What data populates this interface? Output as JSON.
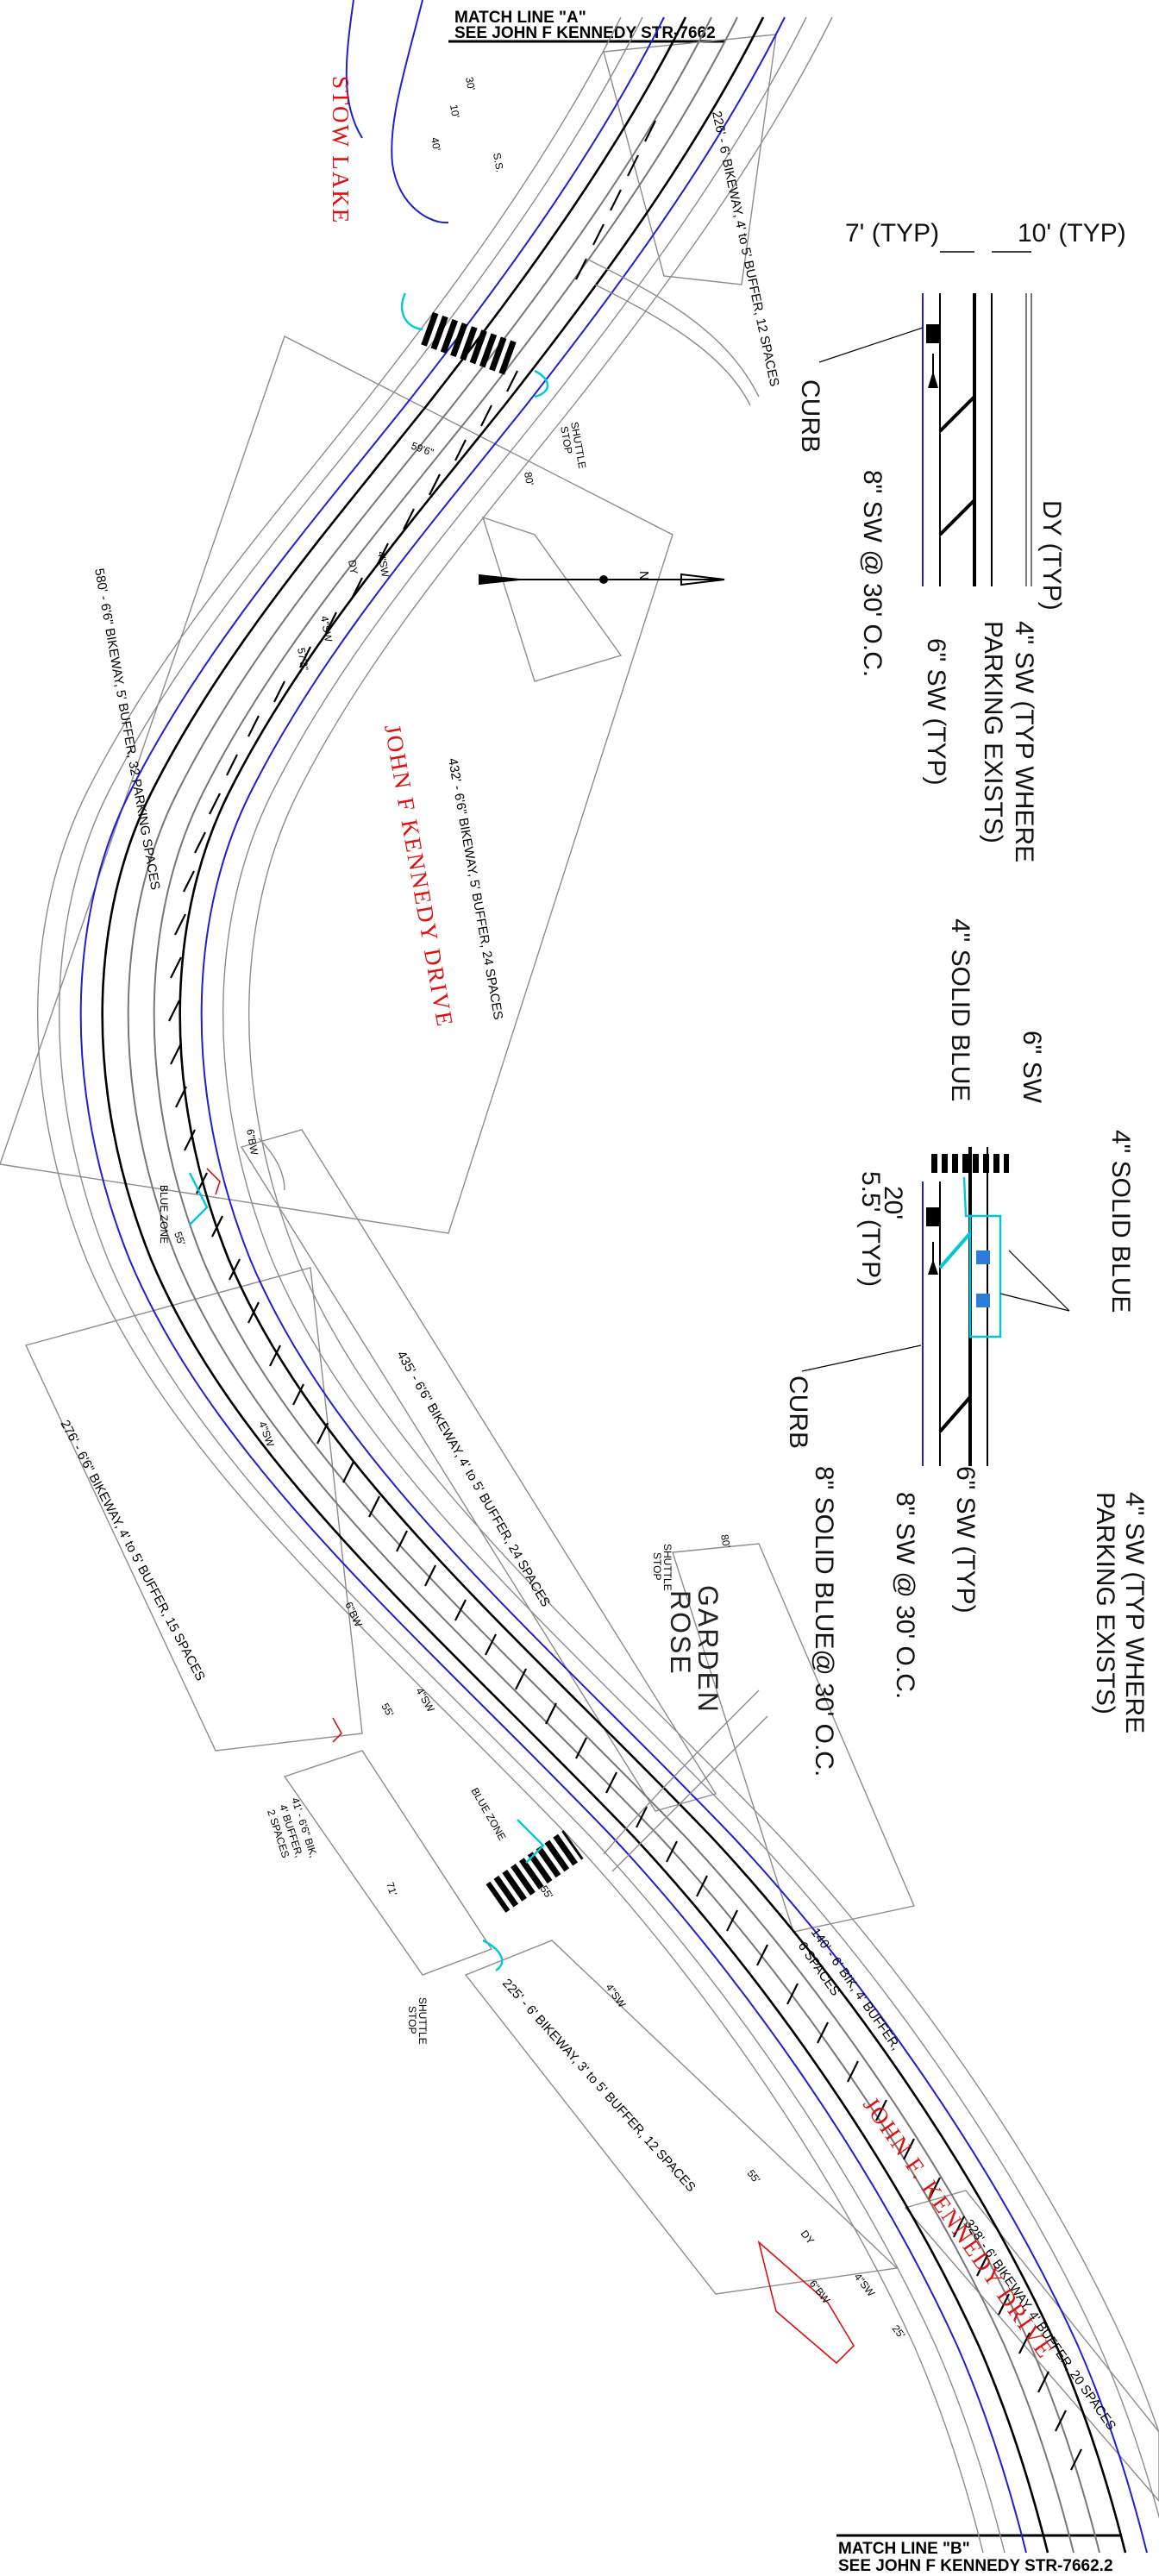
{
  "match_line_top": {
    "line1": "MATCH LINE \"A\"",
    "line2": "SEE JOHN F KENNEDY STR-7662"
  },
  "match_line_bottom": {
    "line1": "MATCH LINE \"B\"",
    "line2": "SEE JOHN F KENNEDY STR-7662.2"
  },
  "place_labels": {
    "stow_lake": "STOW LAKE",
    "rose_garden_1": "ROSE",
    "rose_garden_2": "GARDEN",
    "street_1": "JOHN F KENNEDY DRIVE",
    "street_2": "JOHN F. KENNEDY DRIVE"
  },
  "north_arrow": {
    "label": "N"
  },
  "segment_notes": {
    "top_right": "226' - 6' BIKEWAY, 4' to 5' BUFFER, 12 SPACES",
    "left_1": "580' - 6'6\" BIKEWAY, 5' BUFFER, 32 PARKING SPACES",
    "mid_1": "432' - 6'6\" BIKEWAY, 5' BUFFER, 24 SPACES",
    "mid_2": "435' - 6'6\" BIKEWAY, 4' to 5' BUFFER, 24 SPACES",
    "left_2": "276' - 6'6\" BIKEWAY, 4' to 5' BUFFER, 15 SPACES",
    "left_3a": "41' - 6'6\" BIK,",
    "left_3b": "4' BUFFER,",
    "left_3c": "2 SPACES",
    "mid_3": "140' - 6' BIK, 4' BUFFER,",
    "mid_3b": "6 SPACES",
    "bottom_1": "225' - 6' BIKEWAY, 3' to 5' BUFFER, 12 SPACES",
    "bottom_right": "328' - 6' BIKEWAY, 4' BUFFER, 20 SPACES"
  },
  "small_labels": {
    "shuttle_stop_1a": "SHUTTLE",
    "shuttle_stop_1b": "STOP",
    "shuttle_stop_2a": "SHUTTLE",
    "shuttle_stop_2b": "STOP",
    "shuttle_stop_3a": "SHUTTLE",
    "shuttle_stop_3b": "STOP",
    "blue_zone_1": "BLUE ZONE",
    "blue_zone_2": "BLUE ZONE",
    "dim_80a": "80'",
    "dim_80b": "80'",
    "dim_71": "71'",
    "dim_30": "30'",
    "dim_10": "10'",
    "dim_40": "40'",
    "dim_59": "59'6\"",
    "dim_57": "57'3\"",
    "ss": "S.S.",
    "sw4a": "4\"SW",
    "sw4b": "4\"SW",
    "sw4c": "4\"SW",
    "sw4d": "4\"SW",
    "sw4e": "4\"SW",
    "sw4f": "4\"SW",
    "bw6a": "6\"BW",
    "bw6b": "6\"BW",
    "bw6c": "6\"BW",
    "dy1": "DY",
    "dy2": "DY",
    "num_55a": "55'",
    "num_55b": "55'",
    "num_55c": "55'",
    "num_55d": "55'",
    "num_25": "25'"
  },
  "legend_1": {
    "dim_7": "7' (TYP)",
    "dim_10": "10' (TYP)",
    "dy": "DY (TYP)",
    "sw4_1": "4\" SW (TYP WHERE",
    "sw4_2": "PARKING EXISTS)",
    "sw6": "6\" SW (TYP)",
    "sw8": "8\" SW @ 30' O.C.",
    "curb": "CURB"
  },
  "legend_2": {
    "sw6": "6\" SW",
    "solid_blue_1": "4\" SOLID BLUE",
    "solid_blue_2": "4\" SOLID BLUE",
    "dim_20": "20'",
    "dim_55": "5.5' (TYP)",
    "sw4_1": "4\" SW (TYP WHERE",
    "sw4_2": "PARKING EXISTS)",
    "sw6_typ": "6\" SW (TYP)",
    "sw8": "8\" SW @ 30' O.C.",
    "solid_blue_8": "8\" SOLID BLUE@ 30' O.C.",
    "curb": "CURB"
  },
  "colors": {
    "street_label": "#e01010",
    "curb_line": "#1f1fd2",
    "blue_zone": "#00c8d8",
    "striping": "#000000"
  }
}
